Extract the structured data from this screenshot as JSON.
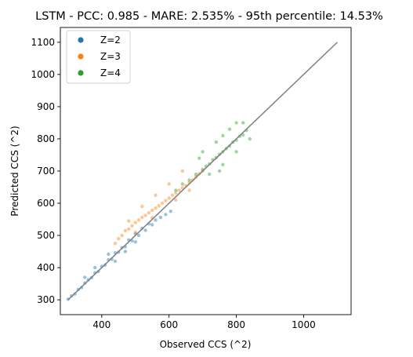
{
  "chart_data": {
    "type": "scatter",
    "title": "LSTM - PCC: 0.985 - MARE: 2.535% - 95th percentile: 14.53%",
    "xlabel": "Observed CCS (^2)",
    "ylabel": "Predicted CCS (^2)",
    "xlim": [
      277,
      1141
    ],
    "ylim": [
      254,
      1146
    ],
    "xticks": [
      400,
      600,
      800,
      1000
    ],
    "yticks": [
      300,
      400,
      500,
      600,
      700,
      800,
      900,
      1000,
      1100
    ],
    "grid": false,
    "legend_position": "top-left",
    "reference_line": {
      "x": [
        300,
        1100
      ],
      "y": [
        300,
        1100
      ],
      "color": "#808080"
    },
    "series": [
      {
        "name": "Z=2",
        "color": "#1f77b4",
        "points": [
          [
            300,
            302
          ],
          [
            310,
            312
          ],
          [
            320,
            318
          ],
          [
            330,
            332
          ],
          [
            340,
            338
          ],
          [
            350,
            352
          ],
          [
            360,
            362
          ],
          [
            370,
            369
          ],
          [
            380,
            384
          ],
          [
            390,
            388
          ],
          [
            400,
            404
          ],
          [
            410,
            408
          ],
          [
            420,
            424
          ],
          [
            430,
            426
          ],
          [
            440,
            446
          ],
          [
            450,
            448
          ],
          [
            460,
            462
          ],
          [
            470,
            465
          ],
          [
            480,
            486
          ],
          [
            490,
            483
          ],
          [
            500,
            505
          ],
          [
            510,
            500
          ],
          [
            520,
            522
          ],
          [
            530,
            516
          ],
          [
            540,
            536
          ],
          [
            550,
            533
          ],
          [
            560,
            548
          ],
          [
            575,
            556
          ],
          [
            590,
            565
          ],
          [
            605,
            575
          ],
          [
            350,
            370
          ],
          [
            380,
            400
          ],
          [
            420,
            442
          ],
          [
            440,
            420
          ],
          [
            470,
            450
          ],
          [
            500,
            480
          ]
        ]
      },
      {
        "name": "Z=3",
        "color": "#ff7f0e",
        "points": [
          [
            440,
            475
          ],
          [
            450,
            490
          ],
          [
            460,
            500
          ],
          [
            470,
            515
          ],
          [
            480,
            520
          ],
          [
            490,
            530
          ],
          [
            500,
            540
          ],
          [
            510,
            548
          ],
          [
            520,
            556
          ],
          [
            530,
            562
          ],
          [
            540,
            570
          ],
          [
            550,
            578
          ],
          [
            560,
            585
          ],
          [
            570,
            592
          ],
          [
            580,
            600
          ],
          [
            590,
            608
          ],
          [
            600,
            616
          ],
          [
            610,
            625
          ],
          [
            620,
            632
          ],
          [
            630,
            640
          ],
          [
            640,
            648
          ],
          [
            650,
            655
          ],
          [
            660,
            664
          ],
          [
            670,
            672
          ],
          [
            680,
            682
          ],
          [
            690,
            692
          ],
          [
            700,
            700
          ],
          [
            480,
            545
          ],
          [
            520,
            590
          ],
          [
            560,
            625
          ],
          [
            600,
            660
          ],
          [
            640,
            700
          ],
          [
            500,
            510
          ],
          [
            550,
            555
          ],
          [
            620,
            610
          ],
          [
            660,
            640
          ]
        ]
      },
      {
        "name": "Z=4",
        "color": "#2ca02c",
        "points": [
          [
            620,
            640
          ],
          [
            640,
            660
          ],
          [
            660,
            672
          ],
          [
            680,
            690
          ],
          [
            700,
            705
          ],
          [
            710,
            715
          ],
          [
            720,
            722
          ],
          [
            730,
            735
          ],
          [
            740,
            742
          ],
          [
            750,
            752
          ],
          [
            760,
            760
          ],
          [
            770,
            770
          ],
          [
            780,
            778
          ],
          [
            790,
            790
          ],
          [
            800,
            796
          ],
          [
            810,
            808
          ],
          [
            820,
            812
          ],
          [
            830,
            826
          ],
          [
            700,
            760
          ],
          [
            740,
            790
          ],
          [
            760,
            810
          ],
          [
            780,
            830
          ],
          [
            800,
            850
          ],
          [
            720,
            690
          ],
          [
            760,
            720
          ],
          [
            800,
            760
          ],
          [
            840,
            800
          ],
          [
            690,
            740
          ],
          [
            750,
            700
          ],
          [
            820,
            850
          ]
        ]
      }
    ]
  }
}
